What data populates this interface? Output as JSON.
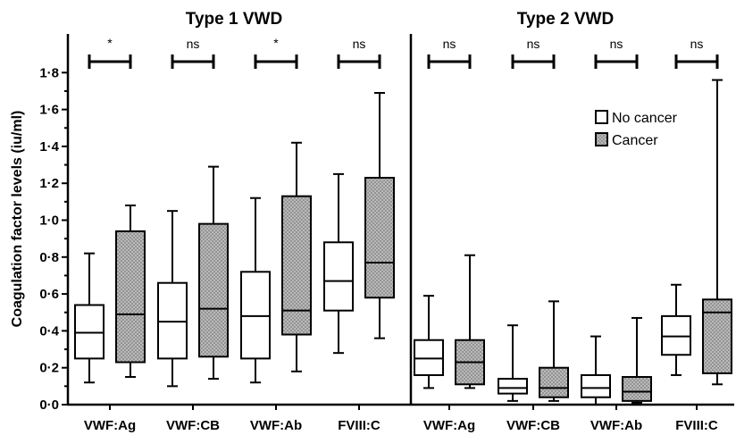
{
  "chart_data": {
    "type": "box",
    "ylabel": "Coagulation factor levels (iu/ml)",
    "ylim": [
      0,
      1.9
    ],
    "yticks": [
      "0·0",
      "0·2",
      "0·4",
      "0·6",
      "0·8",
      "1·0",
      "1·2",
      "1·4",
      "1·6",
      "1·8"
    ],
    "legend": {
      "placement": "top-right of second panel",
      "entries": [
        {
          "label": "No cancer",
          "fill": "white"
        },
        {
          "label": "Cancer",
          "fill": "gray-hatched"
        }
      ]
    },
    "panels": [
      {
        "title": "Type 1 VWD",
        "categories": [
          {
            "label": "VWF:Ag",
            "significance": "*",
            "no_cancer": {
              "min": 0.12,
              "q1": 0.25,
              "median": 0.39,
              "q3": 0.54,
              "max": 0.82
            },
            "cancer": {
              "min": 0.15,
              "q1": 0.23,
              "median": 0.49,
              "q3": 0.94,
              "max": 1.08
            }
          },
          {
            "label": "VWF:CB",
            "significance": "ns",
            "no_cancer": {
              "min": 0.1,
              "q1": 0.25,
              "median": 0.45,
              "q3": 0.66,
              "max": 1.05
            },
            "cancer": {
              "min": 0.14,
              "q1": 0.26,
              "median": 0.52,
              "q3": 0.98,
              "max": 1.29
            }
          },
          {
            "label": "VWF:Ab",
            "significance": "*",
            "no_cancer": {
              "min": 0.12,
              "q1": 0.25,
              "median": 0.48,
              "q3": 0.72,
              "max": 1.12
            },
            "cancer": {
              "min": 0.18,
              "q1": 0.38,
              "median": 0.51,
              "q3": 1.13,
              "max": 1.42
            }
          },
          {
            "label": "FVIII:C",
            "significance": "ns",
            "no_cancer": {
              "min": 0.28,
              "q1": 0.51,
              "median": 0.67,
              "q3": 0.88,
              "max": 1.25
            },
            "cancer": {
              "min": 0.36,
              "q1": 0.58,
              "median": 0.77,
              "q3": 1.23,
              "max": 1.69
            }
          }
        ]
      },
      {
        "title": "Type 2 VWD",
        "categories": [
          {
            "label": "VWF:Ag",
            "significance": "ns",
            "no_cancer": {
              "min": 0.09,
              "q1": 0.16,
              "median": 0.25,
              "q3": 0.35,
              "max": 0.59
            },
            "cancer": {
              "min": 0.09,
              "q1": 0.11,
              "median": 0.23,
              "q3": 0.35,
              "max": 0.81
            }
          },
          {
            "label": "VWF:CB",
            "significance": "ns",
            "no_cancer": {
              "min": 0.02,
              "q1": 0.06,
              "median": 0.09,
              "q3": 0.14,
              "max": 0.43
            },
            "cancer": {
              "min": 0.02,
              "q1": 0.04,
              "median": 0.09,
              "q3": 0.2,
              "max": 0.56
            }
          },
          {
            "label": "VWF:Ab",
            "significance": "ns",
            "no_cancer": {
              "min": 0.0,
              "q1": 0.04,
              "median": 0.09,
              "q3": 0.16,
              "max": 0.37
            },
            "cancer": {
              "min": 0.01,
              "q1": 0.02,
              "median": 0.07,
              "q3": 0.15,
              "max": 0.47
            }
          },
          {
            "label": "FVIII:C",
            "significance": "ns",
            "no_cancer": {
              "min": 0.16,
              "q1": 0.27,
              "median": 0.37,
              "q3": 0.48,
              "max": 0.65
            },
            "cancer": {
              "min": 0.11,
              "q1": 0.17,
              "median": 0.5,
              "q3": 0.57,
              "max": 1.76
            }
          }
        ]
      }
    ]
  }
}
